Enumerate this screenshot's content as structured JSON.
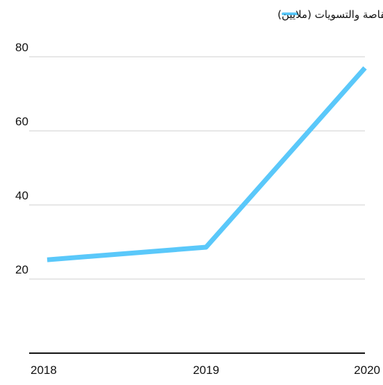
{
  "chart_data": {
    "type": "line",
    "title": "",
    "xlabel": "",
    "ylabel": "",
    "x": [
      "2018",
      "2019",
      "2020"
    ],
    "series": [
      {
        "name": "عدد عمليات المقاصة والتسويات (ملايين)",
        "values": [
          25.2,
          28.6,
          77.0
        ],
        "color": "#5AC8FA"
      }
    ],
    "yticks": [
      20,
      40,
      60,
      80
    ],
    "ylim": [
      0,
      80
    ],
    "grid": true,
    "legend": "top-center"
  }
}
